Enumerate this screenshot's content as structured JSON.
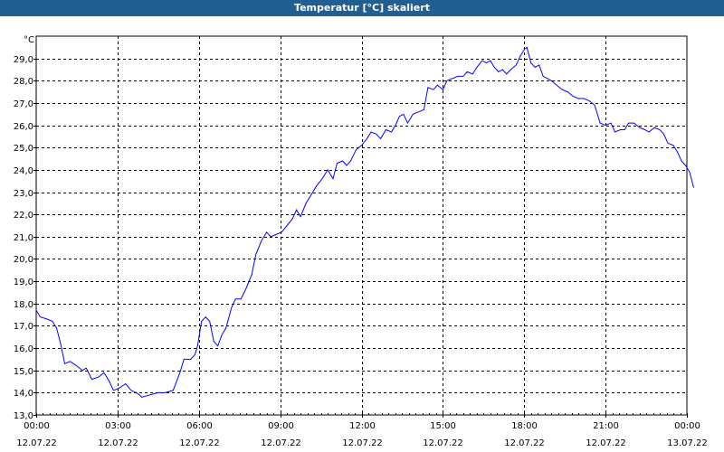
{
  "window": {
    "title": "Temperatur [°C] skaliert"
  },
  "chart_data": {
    "type": "line",
    "title": "Temperatur [°C] skaliert",
    "ylabel": "°C",
    "xlabel": "",
    "ylim": [
      13.0,
      30.0
    ],
    "xlim": [
      0,
      24
    ],
    "grid": true,
    "line_color": "#0000ff",
    "y_ticks": [
      {
        "value": 13,
        "label": "13,0"
      },
      {
        "value": 14,
        "label": "14,0"
      },
      {
        "value": 15,
        "label": "15,0"
      },
      {
        "value": 16,
        "label": "16,0"
      },
      {
        "value": 17,
        "label": "17,0"
      },
      {
        "value": 18,
        "label": "18,0"
      },
      {
        "value": 19,
        "label": "19,0"
      },
      {
        "value": 20,
        "label": "20,0"
      },
      {
        "value": 21,
        "label": "21,0"
      },
      {
        "value": 22,
        "label": "22,0"
      },
      {
        "value": 23,
        "label": "23,0"
      },
      {
        "value": 24,
        "label": "24,0"
      },
      {
        "value": 25,
        "label": "25,0"
      },
      {
        "value": 26,
        "label": "26,0"
      },
      {
        "value": 27,
        "label": "27,0"
      },
      {
        "value": 28,
        "label": "28,0"
      },
      {
        "value": 29,
        "label": "29,0"
      }
    ],
    "x_ticks": [
      {
        "value": 0,
        "time": "00:00",
        "date": "12.07.22"
      },
      {
        "value": 3,
        "time": "03:00",
        "date": "12.07.22"
      },
      {
        "value": 6,
        "time": "06:00",
        "date": "12.07.22"
      },
      {
        "value": 9,
        "time": "09:00",
        "date": "12.07.22"
      },
      {
        "value": 12,
        "time": "12:00",
        "date": "12.07.22"
      },
      {
        "value": 15,
        "time": "15:00",
        "date": "12.07.22"
      },
      {
        "value": 18,
        "time": "18:00",
        "date": "12.07.22"
      },
      {
        "value": 21,
        "time": "21:00",
        "date": "12.07.22"
      },
      {
        "value": 24,
        "time": "00:00",
        "date": "13.07.22"
      }
    ],
    "series": [
      {
        "points": [
          [
            0.0,
            17.7
          ],
          [
            0.15,
            17.4
          ],
          [
            0.4,
            17.3
          ],
          [
            0.6,
            17.2
          ],
          [
            0.75,
            16.9
          ],
          [
            0.9,
            16.2
          ],
          [
            1.05,
            15.3
          ],
          [
            1.25,
            15.4
          ],
          [
            1.5,
            15.2
          ],
          [
            1.7,
            15.0
          ],
          [
            1.85,
            15.1
          ],
          [
            2.05,
            14.6
          ],
          [
            2.3,
            14.7
          ],
          [
            2.5,
            14.9
          ],
          [
            2.7,
            14.5
          ],
          [
            2.85,
            14.1
          ],
          [
            3.05,
            14.2
          ],
          [
            3.3,
            14.4
          ],
          [
            3.5,
            14.1
          ],
          [
            3.7,
            14.0
          ],
          [
            3.9,
            13.8
          ],
          [
            4.2,
            13.9
          ],
          [
            4.5,
            14.0
          ],
          [
            4.75,
            14.0
          ],
          [
            5.05,
            14.1
          ],
          [
            5.3,
            14.9
          ],
          [
            5.45,
            15.5
          ],
          [
            5.7,
            15.5
          ],
          [
            5.85,
            15.7
          ],
          [
            5.95,
            16.1
          ],
          [
            6.1,
            17.2
          ],
          [
            6.25,
            17.4
          ],
          [
            6.4,
            17.2
          ],
          [
            6.55,
            16.3
          ],
          [
            6.7,
            16.1
          ],
          [
            6.85,
            16.6
          ],
          [
            7.0,
            16.9
          ],
          [
            7.2,
            17.8
          ],
          [
            7.35,
            18.2
          ],
          [
            7.55,
            18.2
          ],
          [
            7.75,
            18.7
          ],
          [
            7.95,
            19.3
          ],
          [
            8.1,
            20.2
          ],
          [
            8.3,
            20.8
          ],
          [
            8.5,
            21.2
          ],
          [
            8.65,
            21.0
          ],
          [
            8.85,
            21.1
          ],
          [
            9.05,
            21.2
          ],
          [
            9.25,
            21.5
          ],
          [
            9.45,
            21.8
          ],
          [
            9.6,
            22.2
          ],
          [
            9.75,
            21.9
          ],
          [
            9.95,
            22.5
          ],
          [
            10.15,
            22.9
          ],
          [
            10.35,
            23.3
          ],
          [
            10.55,
            23.6
          ],
          [
            10.75,
            24.0
          ],
          [
            10.95,
            23.6
          ],
          [
            11.1,
            24.3
          ],
          [
            11.3,
            24.4
          ],
          [
            11.45,
            24.2
          ],
          [
            11.6,
            24.4
          ],
          [
            11.8,
            24.9
          ],
          [
            12.0,
            25.1
          ],
          [
            12.2,
            25.4
          ],
          [
            12.35,
            25.7
          ],
          [
            12.55,
            25.6
          ],
          [
            12.7,
            25.4
          ],
          [
            12.9,
            25.8
          ],
          [
            13.1,
            25.7
          ],
          [
            13.25,
            26.0
          ],
          [
            13.4,
            26.4
          ],
          [
            13.55,
            26.5
          ],
          [
            13.7,
            26.1
          ],
          [
            13.9,
            26.5
          ],
          [
            14.1,
            26.6
          ],
          [
            14.3,
            26.7
          ],
          [
            14.45,
            27.7
          ],
          [
            14.65,
            27.6
          ],
          [
            14.8,
            27.8
          ],
          [
            15.0,
            27.6
          ],
          [
            15.15,
            28.0
          ],
          [
            15.35,
            28.1
          ],
          [
            15.55,
            28.2
          ],
          [
            15.75,
            28.2
          ],
          [
            15.9,
            28.4
          ],
          [
            16.1,
            28.3
          ],
          [
            16.25,
            28.6
          ],
          [
            16.45,
            28.9
          ],
          [
            16.6,
            28.8
          ],
          [
            16.75,
            28.9
          ],
          [
            16.9,
            28.6
          ],
          [
            17.05,
            28.4
          ],
          [
            17.2,
            28.5
          ],
          [
            17.35,
            28.3
          ],
          [
            17.5,
            28.5
          ],
          [
            17.7,
            28.7
          ],
          [
            17.85,
            29.1
          ],
          [
            18.0,
            29.4
          ],
          [
            18.1,
            29.5
          ],
          [
            18.25,
            28.8
          ],
          [
            18.4,
            28.6
          ],
          [
            18.55,
            28.7
          ],
          [
            18.7,
            28.2
          ],
          [
            18.85,
            28.1
          ],
          [
            19.0,
            28.0
          ],
          [
            19.2,
            27.8
          ],
          [
            19.4,
            27.6
          ],
          [
            19.6,
            27.5
          ],
          [
            19.8,
            27.3
          ],
          [
            20.0,
            27.2
          ],
          [
            20.2,
            27.2
          ],
          [
            20.4,
            27.1
          ],
          [
            20.6,
            26.9
          ],
          [
            20.8,
            26.1
          ],
          [
            21.0,
            26.0
          ],
          [
            21.2,
            26.1
          ],
          [
            21.35,
            25.7
          ],
          [
            21.55,
            25.8
          ],
          [
            21.7,
            25.8
          ],
          [
            21.85,
            26.1
          ],
          [
            22.05,
            26.1
          ],
          [
            22.25,
            25.9
          ],
          [
            22.45,
            25.8
          ],
          [
            22.6,
            25.7
          ],
          [
            22.8,
            25.9
          ],
          [
            23.0,
            25.8
          ],
          [
            23.15,
            25.6
          ],
          [
            23.3,
            25.2
          ],
          [
            23.5,
            25.1
          ],
          [
            23.65,
            24.8
          ],
          [
            23.8,
            24.4
          ],
          [
            23.95,
            24.2
          ],
          [
            24.1,
            23.9
          ],
          [
            24.25,
            23.2
          ]
        ]
      }
    ]
  }
}
